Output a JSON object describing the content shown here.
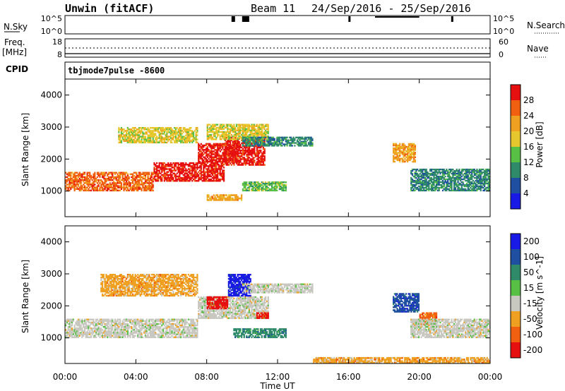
{
  "header": {
    "radar": "Unwin (fitACF)",
    "beam": "Beam 11",
    "date_range": "24/Sep/2016 - 25/Sep/2016"
  },
  "sky_noise": {
    "label": "N.Sky",
    "ticks_left": [
      "10^5",
      "10^0"
    ],
    "ticks_right": [
      "10^5",
      "10^0"
    ],
    "right_label": "N.Search"
  },
  "freq": {
    "label_top": "Freq.",
    "label_unit": "[MHz]",
    "ticks_left": [
      "18",
      "8"
    ],
    "ticks_right": [
      "60",
      "0"
    ],
    "right_label": "Nave"
  },
  "cpid": {
    "label": "CPID",
    "value": "tbjmode7pulse -8600"
  },
  "time_axis": {
    "label": "Time UT",
    "ticks": [
      "00:00",
      "04:00",
      "08:00",
      "12:00",
      "16:00",
      "20:00",
      "00:00"
    ]
  },
  "colors": {
    "power": [
      "#1a1ae6",
      "#1f4fa0",
      "#2f8a6a",
      "#59c046",
      "#e6c82e",
      "#f0a020",
      "#f06010",
      "#e61010"
    ],
    "velocity": [
      "#1a1ae6",
      "#1f4fa0",
      "#2f8a6a",
      "#59c046",
      "#c8c8c0",
      "#f0a020",
      "#f06010",
      "#e61010"
    ]
  },
  "chart_data": [
    {
      "type": "heatmap",
      "ylabel": "Slant Range [km]",
      "xlabel": "",
      "ylim": [
        200,
        4500
      ],
      "yticks": [
        "1000",
        "2000",
        "3000",
        "4000"
      ],
      "xlim": [
        0,
        24
      ],
      "colorbar_label": "Power [dB]",
      "colorbar_ticks": [
        "4",
        "8",
        "12",
        "16",
        "20",
        "24",
        "28"
      ],
      "colorbar_range": [
        0,
        32
      ],
      "bands": [
        {
          "t0": 0,
          "t1": 5,
          "r0": 1000,
          "r1": 1600,
          "level": 24
        },
        {
          "t0": 5,
          "t1": 9,
          "r0": 1300,
          "r1": 1900,
          "level": 28
        },
        {
          "t0": 9,
          "t1": 11.3,
          "r0": 1800,
          "r1": 2700,
          "level": 28
        },
        {
          "t0": 7.5,
          "t1": 9.8,
          "r0": 1900,
          "r1": 2500,
          "level": 28
        },
        {
          "t0": 3,
          "t1": 7.5,
          "r0": 2500,
          "r1": 3000,
          "level": 16
        },
        {
          "t0": 8,
          "t1": 11.5,
          "r0": 2600,
          "r1": 3100,
          "level": 18
        },
        {
          "t0": 10,
          "t1": 14,
          "r0": 2400,
          "r1": 2700,
          "level": 8
        },
        {
          "t0": 10,
          "t1": 12.5,
          "r0": 1000,
          "r1": 1300,
          "level": 12
        },
        {
          "t0": 8,
          "t1": 10,
          "r0": 700,
          "r1": 900,
          "level": 20
        },
        {
          "t0": 18.5,
          "t1": 19.8,
          "r0": 1900,
          "r1": 2500,
          "level": 20
        },
        {
          "t0": 19.5,
          "t1": 24,
          "r0": 1000,
          "r1": 1700,
          "level": 8
        }
      ]
    },
    {
      "type": "heatmap",
      "ylabel": "Slant Range [km]",
      "xlabel": "Time UT",
      "ylim": [
        200,
        4500
      ],
      "yticks": [
        "1000",
        "2000",
        "3000",
        "4000"
      ],
      "xlim": [
        0,
        24
      ],
      "colorbar_label": "Velocity [m s^-1]",
      "colorbar_ticks": [
        "200",
        "100",
        "50",
        "15",
        "-15",
        "-50",
        "-100",
        "-200"
      ],
      "bands": [
        {
          "t0": 0,
          "t1": 7.5,
          "r0": 1000,
          "r1": 1600,
          "level": -15
        },
        {
          "t0": 7.5,
          "t1": 11.5,
          "r0": 1600,
          "r1": 2300,
          "level": -15
        },
        {
          "t0": 2,
          "t1": 7.5,
          "r0": 2300,
          "r1": 3000,
          "level": -50
        },
        {
          "t0": 8,
          "t1": 9.2,
          "r0": 1900,
          "r1": 2300,
          "level": -200
        },
        {
          "t0": 9.2,
          "t1": 10.5,
          "r0": 2300,
          "r1": 3000,
          "level": 200
        },
        {
          "t0": 10,
          "t1": 14,
          "r0": 2400,
          "r1": 2700,
          "level": -15
        },
        {
          "t0": 9.5,
          "t1": 12.5,
          "r0": 1000,
          "r1": 1300,
          "level": 50
        },
        {
          "t0": 10.8,
          "t1": 11.5,
          "r0": 1600,
          "r1": 1800,
          "level": -200
        },
        {
          "t0": 18.5,
          "t1": 20,
          "r0": 1800,
          "r1": 2400,
          "level": 100
        },
        {
          "t0": 20,
          "t1": 21,
          "r0": 1400,
          "r1": 1800,
          "level": -100
        },
        {
          "t0": 19.5,
          "t1": 24,
          "r0": 1000,
          "r1": 1600,
          "level": -15
        },
        {
          "t0": 14,
          "t1": 24,
          "r0": 200,
          "r1": 400,
          "level": -50
        }
      ]
    }
  ]
}
